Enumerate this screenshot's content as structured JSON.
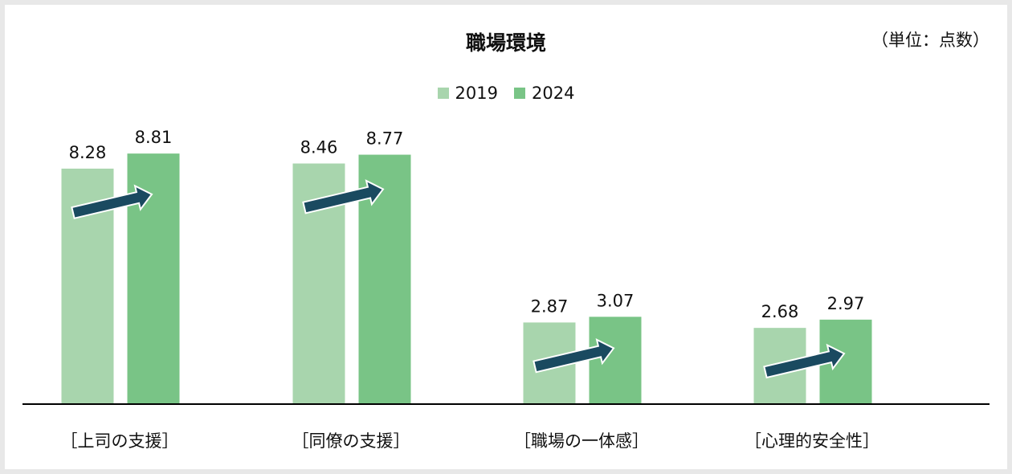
{
  "title": "職場環境",
  "unit_note": "（単位：点数）",
  "legend": [
    {
      "label": "2019",
      "color": "#a8d5ad"
    },
    {
      "label": "2024",
      "color": "#79c486"
    }
  ],
  "colors": {
    "arrow": "#1a4a60",
    "axis": "#000000"
  },
  "chart_data": {
    "type": "bar",
    "title": "職場環境",
    "categories": [
      "［上司の支援］",
      "［同僚の支援］",
      "［職場の一体感］",
      "［心理的安全性］"
    ],
    "series": [
      {
        "name": "2019",
        "values": [
          8.28,
          8.46,
          2.87,
          2.68
        ]
      },
      {
        "name": "2024",
        "values": [
          8.81,
          8.77,
          3.07,
          2.97
        ]
      }
    ],
    "ylim": [
      0,
      10.6
    ],
    "grid": false,
    "legend_position": "top-center"
  }
}
